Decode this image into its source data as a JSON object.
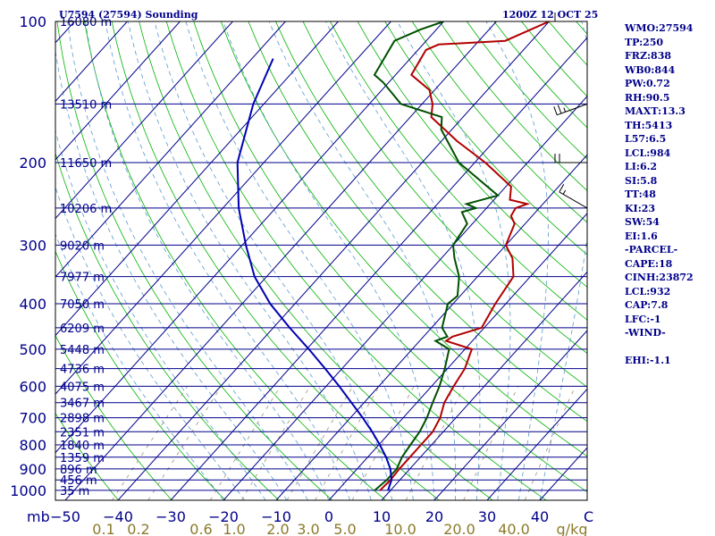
{
  "chart_data": {
    "type": "line",
    "subtype": "skew-t log-p sounding",
    "title": "U7594 (27594) Sounding",
    "time": "1200Z 12 OCT 25",
    "xlabel": "g/kg",
    "temperature_axis": {
      "ticks": [
        -50,
        -40,
        -30,
        -20,
        -10,
        0,
        10,
        20,
        30,
        40
      ],
      "labels": [
        "−50",
        "−40",
        "−30",
        "−20",
        "−10",
        "0",
        "10",
        "20",
        "30",
        "40"
      ],
      "unit_label": "C"
    },
    "mixing_ratio_axis": {
      "values": [
        0.1,
        0.2,
        0.6,
        1.0,
        2.0,
        3.0,
        5.0,
        10.0,
        20.0,
        40.0
      ],
      "labels": [
        "0.1",
        "0.2",
        "0.6",
        "1.0",
        "2.0",
        "3.0",
        "5.0",
        "10.0",
        "20.0",
        "40.0"
      ]
    },
    "pressure_axis": {
      "label": "mb",
      "ticks": [
        100,
        200,
        300,
        400,
        500,
        600,
        700,
        800,
        900,
        1000
      ],
      "labels": [
        "100",
        "200",
        "300",
        "400",
        "500",
        "600",
        "700",
        "800",
        "900",
        "1000"
      ],
      "range": [
        1050,
        100
      ],
      "scale": "log"
    },
    "height_levels": [
      {
        "p": 100,
        "label": "16080 m"
      },
      {
        "p": 150,
        "label": "13510 m"
      },
      {
        "p": 200,
        "label": "11650 m"
      },
      {
        "p": 250,
        "label": "10206 m"
      },
      {
        "p": 300,
        "label": "9020 m"
      },
      {
        "p": 350,
        "label": "7977 m"
      },
      {
        "p": 400,
        "label": "7050 m"
      },
      {
        "p": 450,
        "label": "6209 m"
      },
      {
        "p": 500,
        "label": "5448 m"
      },
      {
        "p": 550,
        "label": "4736 m"
      },
      {
        "p": 600,
        "label": "4075 m"
      },
      {
        "p": 650,
        "label": "3467 m"
      },
      {
        "p": 700,
        "label": "2898 m"
      },
      {
        "p": 750,
        "label": "2351 m"
      },
      {
        "p": 800,
        "label": "1840 m"
      },
      {
        "p": 850,
        "label": "1359 m"
      },
      {
        "p": 900,
        "label": "896 m"
      },
      {
        "p": 950,
        "label": "456 m"
      },
      {
        "p": 1000,
        "label": "35 m"
      }
    ],
    "series": [
      {
        "name": "",
        "role": "temperature",
        "color": "#b20000",
        "points": [
          [
            1000,
            8.0
          ],
          [
            950,
            8.2
          ],
          [
            900,
            8.0
          ],
          [
            850,
            8.0
          ],
          [
            800,
            8.0
          ],
          [
            750,
            8.0
          ],
          [
            700,
            7.0
          ],
          [
            650,
            5.2
          ],
          [
            600,
            4.2
          ],
          [
            550,
            3.3
          ],
          [
            500,
            1.3
          ],
          [
            480,
            -5.0
          ],
          [
            470,
            -4.5
          ],
          [
            450,
            -0.5
          ],
          [
            400,
            -2.0
          ],
          [
            350,
            -3.2
          ],
          [
            320,
            -6.5
          ],
          [
            300,
            -10.0
          ],
          [
            270,
            -12.0
          ],
          [
            260,
            -14.0
          ],
          [
            250,
            -14.5
          ],
          [
            245,
            -13.0
          ],
          [
            240,
            -17.0
          ],
          [
            225,
            -19.0
          ],
          [
            200,
            -28.0
          ],
          [
            180,
            -37.0
          ],
          [
            160,
            -46.0
          ],
          [
            150,
            -48.0
          ],
          [
            140,
            -51.0
          ],
          [
            130,
            -57.0
          ],
          [
            115,
            -58.5
          ],
          [
            112,
            -57.0
          ],
          [
            110,
            -45.0
          ],
          [
            100,
            -40.0
          ]
        ]
      },
      {
        "name": "",
        "role": "dewpoint",
        "color": "#005000",
        "points": [
          [
            1000,
            7.0
          ],
          [
            950,
            7.5
          ],
          [
            900,
            7.5
          ],
          [
            850,
            6.5
          ],
          [
            800,
            6.0
          ],
          [
            750,
            5.5
          ],
          [
            700,
            4.5
          ],
          [
            650,
            3.0
          ],
          [
            600,
            1.5
          ],
          [
            550,
            -0.5
          ],
          [
            500,
            -3.0
          ],
          [
            480,
            -7.0
          ],
          [
            470,
            -5.5
          ],
          [
            450,
            -8.0
          ],
          [
            400,
            -11.0
          ],
          [
            385,
            -10.5
          ],
          [
            350,
            -13.5
          ],
          [
            320,
            -17.5
          ],
          [
            300,
            -20.0
          ],
          [
            270,
            -21.0
          ],
          [
            255,
            -24.0
          ],
          [
            250,
            -22.0
          ],
          [
            245,
            -24.5
          ],
          [
            235,
            -20.0
          ],
          [
            200,
            -33.0
          ],
          [
            170,
            -42.0
          ],
          [
            160,
            -44.0
          ],
          [
            150,
            -54.0
          ],
          [
            135,
            -61.0
          ],
          [
            130,
            -64.0
          ],
          [
            110,
            -66.0
          ],
          [
            104,
            -63.0
          ],
          [
            100,
            -60.0
          ]
        ]
      },
      {
        "name": "",
        "role": "parcel",
        "color": "#0000b4",
        "points": [
          [
            1000,
            9.5
          ],
          [
            950,
            8.4
          ],
          [
            900,
            6.3
          ],
          [
            850,
            3.5
          ],
          [
            800,
            0.2
          ],
          [
            750,
            -3.5
          ],
          [
            700,
            -7.7
          ],
          [
            650,
            -12.4
          ],
          [
            600,
            -17.5
          ],
          [
            550,
            -23.2
          ],
          [
            500,
            -29.6
          ],
          [
            450,
            -36.9
          ],
          [
            400,
            -44.7
          ],
          [
            350,
            -52.3
          ],
          [
            300,
            -59.3
          ],
          [
            250,
            -67.0
          ],
          [
            200,
            -75.0
          ],
          [
            150,
            -82.0
          ],
          [
            120,
            -86.0
          ]
        ]
      }
    ],
    "winds": [
      {
        "p": 100,
        "spd": 10,
        "dir": 270
      },
      {
        "p": 150,
        "spd": 25,
        "dir": 250
      },
      {
        "p": 200,
        "spd": 20,
        "dir": 270
      },
      {
        "p": 250,
        "spd": 15,
        "dir": 300
      }
    ]
  },
  "stats": [
    "WMO:27594",
    "TP:250",
    "FRZ:838",
    "WB0:844",
    "PW:0.72",
    "RH:90.5",
    "MAXT:13.3",
    "TH:5413",
    "L57:6.5",
    "LCL:984",
    "LI:6.2",
    "SI:5.8",
    "TT:48",
    "KI:23",
    "SW:54",
    "EI:1.6",
    "-PARCEL-",
    "CAPE:18",
    "CINH:23872",
    "LCL:932",
    "CAP:7.8",
    "LFC:-1",
    "-WIND-",
    "",
    "EHI:-1.1"
  ],
  "colors": {
    "isobar": "#00008b",
    "isotherm": "#00008b",
    "dry_adiabat": "#00b400",
    "moist_adiabat": "#5a9acd",
    "mixing_ratio": "#a09070",
    "temperature": "#b20000",
    "dewpoint": "#005000",
    "parcel": "#0000b4",
    "axis_text": "#00008b",
    "mixing_text": "#8b7a2a"
  }
}
